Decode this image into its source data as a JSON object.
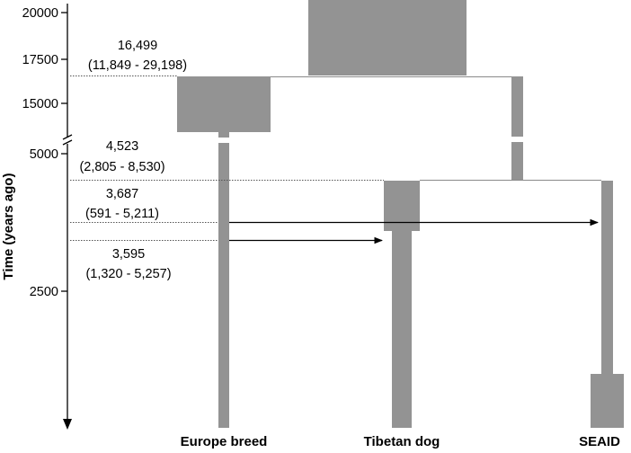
{
  "axis": {
    "label": "Time (years ago)",
    "ticks": [
      "20000",
      "17500",
      "15000",
      "5000",
      "2500"
    ]
  },
  "events": [
    {
      "estimate": "16,499",
      "range": "(11,849 - 29,198)"
    },
    {
      "estimate": "4,523",
      "range": "(2,805 - 8,530)"
    },
    {
      "estimate": "3,687",
      "range": "(591 - 5,211)"
    },
    {
      "estimate": "3,595",
      "range": "(1,320 - 5,257)"
    }
  ],
  "populations": [
    "Europe breed",
    "Tibetan dog",
    "SEAID"
  ],
  "colors": {
    "population": "#939393",
    "line": "#8a8a8a",
    "ink": "#000000"
  }
}
